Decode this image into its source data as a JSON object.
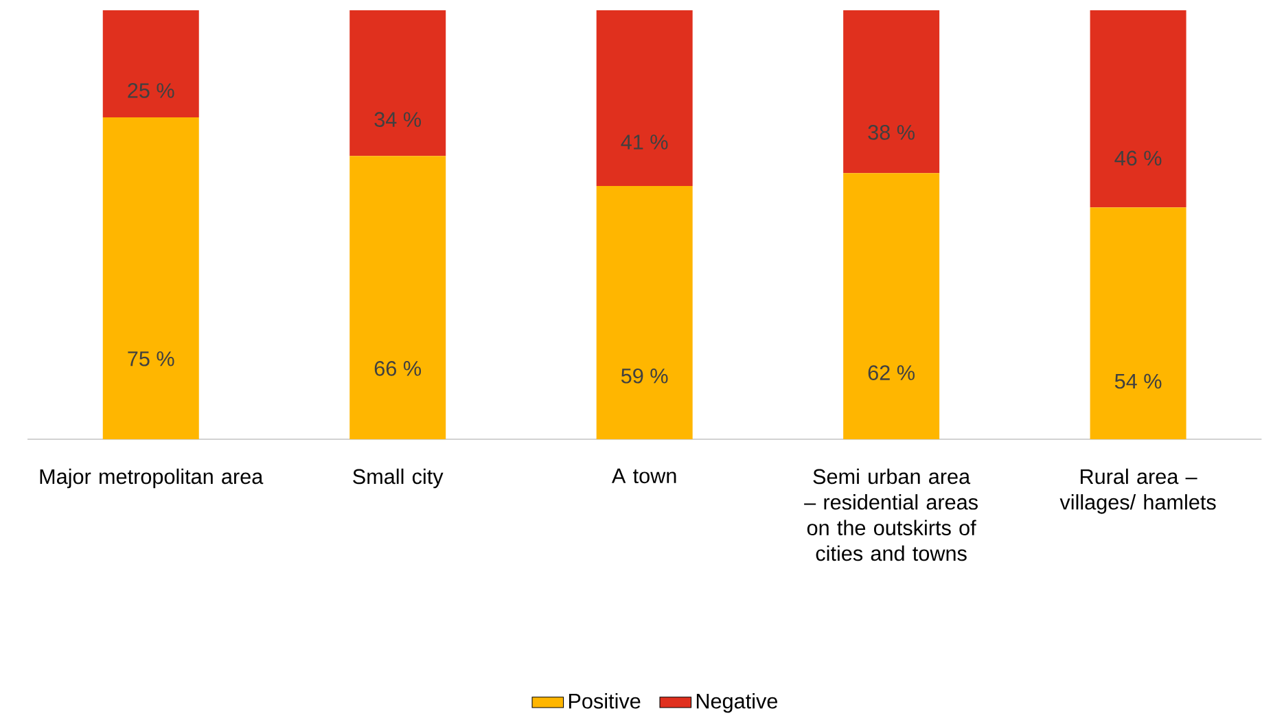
{
  "chart_data": {
    "type": "bar",
    "stacked": true,
    "legend": "bottom",
    "categories": [
      "Major metropolitan area",
      "Small city",
      "A town",
      "Semi urban area – residential areas on the outskirts of cities and towns",
      "Rural area – villages/ hamlets"
    ],
    "series": [
      {
        "name": "Positive",
        "color": "#ffb600",
        "values": [
          75,
          66,
          59,
          62,
          54
        ],
        "value_labels": [
          "75 %",
          "66 %",
          "59 %",
          "62 %",
          "54 %"
        ]
      },
      {
        "name": "Negative",
        "color": "#e0301e",
        "values": [
          25,
          34,
          41,
          38,
          46
        ],
        "value_labels": [
          "25 %",
          "34 %",
          "41 %",
          "38 %",
          "46 %"
        ]
      }
    ]
  }
}
